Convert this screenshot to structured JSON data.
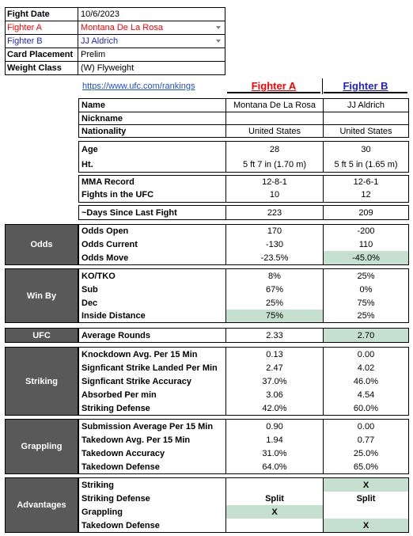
{
  "info": {
    "rows": [
      {
        "label": "Fight Date",
        "value": "10/6/2023"
      },
      {
        "label": "Fighter A",
        "value": "Montana De La Rosa"
      },
      {
        "label": "Fighter B",
        "value": "JJ Aldrich"
      },
      {
        "label": "Card Placement",
        "value": "Prelim"
      },
      {
        "label": "Weight Class",
        "value": "(W) Flyweight"
      }
    ]
  },
  "link": "https://www.ufc.com/rankings",
  "headers": {
    "a": "Fighter A",
    "b": "Fighter B"
  },
  "colors": {
    "fighter_a": "#ff0000",
    "fighter_b": "#1f1fc9",
    "category_bg": "#595959",
    "highlight": "#c6e0cf"
  },
  "basic": [
    {
      "label": "Name",
      "a": "Montana De La Rosa",
      "b": "JJ Aldrich"
    },
    {
      "label": "Nickname",
      "a": "",
      "b": ""
    },
    {
      "label": "Nationality",
      "a": "United States",
      "b": "United States"
    }
  ],
  "physical": [
    {
      "label": "Age",
      "a": "28",
      "b": "30"
    },
    {
      "label": "Ht.",
      "a": "5 ft 7 in (1.70 m)",
      "b": "5 ft 5 in (1.65 m)"
    }
  ],
  "record": [
    {
      "label": "MMA Record",
      "a": "12-8-1",
      "b": "12-6-1"
    },
    {
      "label": "Fights in the UFC",
      "a": "10",
      "b": "12"
    }
  ],
  "days": {
    "label": "~Days Since Last Fight",
    "a": "223",
    "b": "209"
  },
  "odds": {
    "category": "Odds",
    "rows": [
      {
        "label": "Odds Open",
        "a": "170",
        "b": "-200"
      },
      {
        "label": "Odds Current",
        "a": "-130",
        "b": "110"
      },
      {
        "label": "Odds Move",
        "a": "-23.5%",
        "b": "-45.0%"
      }
    ]
  },
  "winby": {
    "category": "Win By",
    "rows": [
      {
        "label": "KO/TKO",
        "a": "8%",
        "b": "25%"
      },
      {
        "label": "Sub",
        "a": "67%",
        "b": "0%"
      },
      {
        "label": "Dec",
        "a": "25%",
        "b": "75%"
      },
      {
        "label": "Inside Distance",
        "a": "75%",
        "b": "25%"
      }
    ]
  },
  "ufc": {
    "category": "UFC",
    "label": "Average Rounds",
    "a": "2.33",
    "b": "2.70"
  },
  "striking": {
    "category": "Striking",
    "rows": [
      {
        "label": "Knockdown Avg. Per 15 Min",
        "a": "0.13",
        "b": "0.00"
      },
      {
        "label": "Signficant Strike Landed Per Min",
        "a": "2.47",
        "b": "4.02"
      },
      {
        "label": "Signficant Strike Accuracy",
        "a": "37.0%",
        "b": "46.0%"
      },
      {
        "label": "Absorbed Per min",
        "a": "3.06",
        "b": "4.54"
      },
      {
        "label": "Striking Defense",
        "a": "42.0%",
        "b": "60.0%"
      }
    ]
  },
  "grappling": {
    "category": "Grappling",
    "rows": [
      {
        "label": "Submission Average  Per 15 Min",
        "a": "0.90",
        "b": "0.00"
      },
      {
        "label": "Takedown Avg. Per 15 Min",
        "a": "1.94",
        "b": "0.77"
      },
      {
        "label": "Takedown Accuracy",
        "a": "31.0%",
        "b": "25.0%"
      },
      {
        "label": "Takedown Defense",
        "a": "64.0%",
        "b": "65.0%"
      }
    ]
  },
  "advantages": {
    "category": "Advantages",
    "rows": [
      {
        "label": "Striking",
        "a": "",
        "b": "X"
      },
      {
        "label": "Striking Defense",
        "a": "Split",
        "b": "Split"
      },
      {
        "label": "Grappling",
        "a": "X",
        "b": ""
      },
      {
        "label": "Takedown Defense",
        "a": "",
        "b": "X"
      }
    ]
  }
}
